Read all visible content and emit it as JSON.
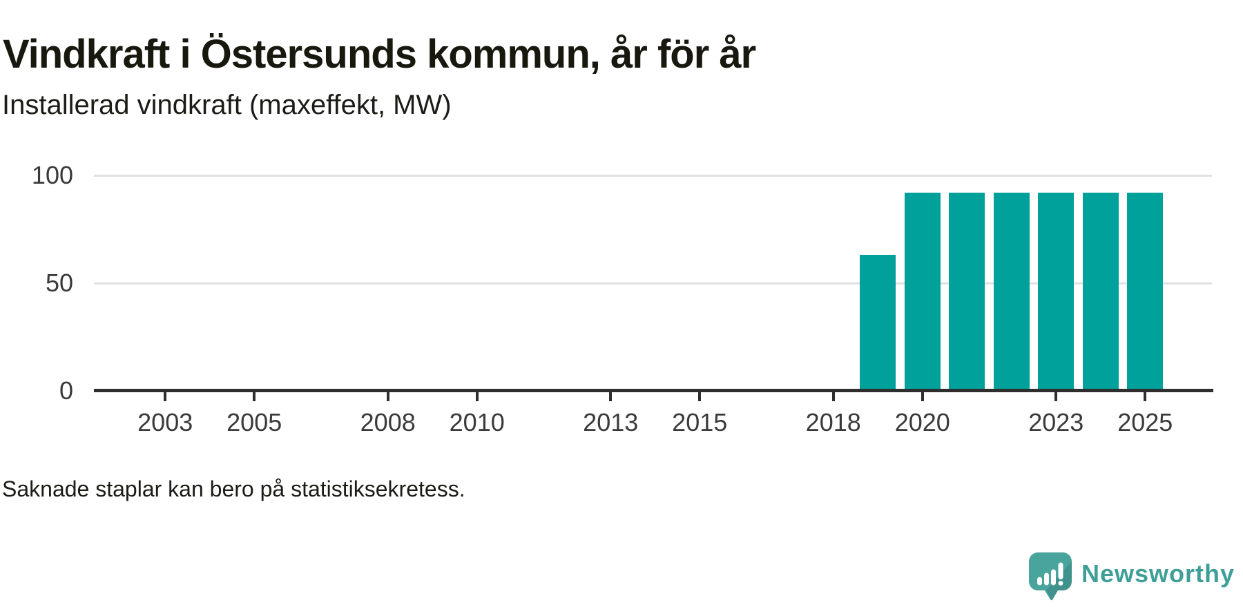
{
  "title": "Vindkraft i Östersunds kommun, år för år",
  "subtitle": "Installerad vindkraft (maxeffekt, MW)",
  "footnote": "Saknade staplar kan bero på statistiksekretess.",
  "branding": {
    "wordmark": "Newsworthy",
    "wordmark_color": "#3f9f98",
    "icon": "newsworthy-speech-bubble-bar-chart-icon",
    "icon_color": "#48a49c"
  },
  "colors": {
    "bar": "#00a09b",
    "axis": "#2e2e2e",
    "gridline": "#e1e1e1",
    "tick_label": "#3a3a3a",
    "text": "#1c1c16",
    "background": "#ffffff"
  },
  "chart_data": {
    "type": "bar",
    "title": "Vindkraft i Östersunds kommun, år för år",
    "subtitle": "Installerad vindkraft (maxeffekt, MW)",
    "unit": "MW",
    "categories": [
      2019,
      2020,
      2021,
      2022,
      2023,
      2024,
      2025
    ],
    "values": [
      63,
      92,
      92,
      92,
      92,
      92,
      92
    ],
    "xlabel": "",
    "ylabel": "Installerad vindkraft (maxeffekt, MW)",
    "x_axis": {
      "range": [
        2001.4,
        2026.5
      ],
      "ticks": [
        2003,
        2005,
        2008,
        2010,
        2013,
        2015,
        2018,
        2020,
        2023,
        2025
      ]
    },
    "y_axis": {
      "range": [
        0,
        100
      ],
      "ticks": [
        0,
        50,
        100
      ]
    },
    "grid": "horizontal",
    "legend": "none",
    "note": "Saknade staplar kan bero på statistiksekretess."
  }
}
